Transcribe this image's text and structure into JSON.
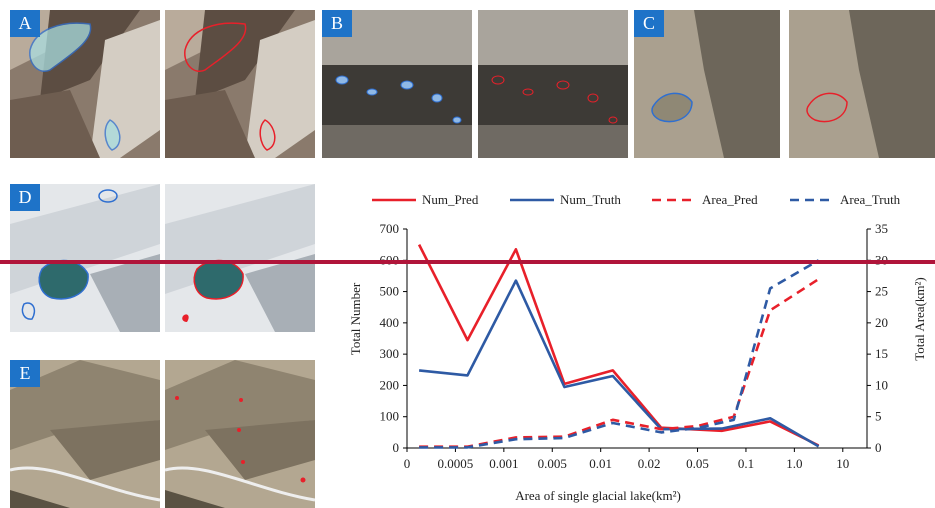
{
  "panels": {
    "A": {
      "label": "A"
    },
    "B": {
      "label": "B"
    },
    "C": {
      "label": "C"
    },
    "D": {
      "label": "D"
    },
    "E": {
      "label": "E"
    }
  },
  "colors": {
    "pred": "#e8202a",
    "truth": "#2e5aa4",
    "highlight_line": "#b0153a",
    "badge": "#1e73c8"
  },
  "chart_data": {
    "type": "line",
    "xlabel": "Area of single glacial lake(km²)",
    "ylabel_left": "Total Number",
    "ylabel_right": "Total Area(km²)",
    "x_ticks": [
      "0",
      "0.0005",
      "0.001",
      "0.005",
      "0.01",
      "0.02",
      "0.05",
      "0.1",
      "1.0",
      "10"
    ],
    "ylim_left": [
      0,
      700
    ],
    "yticks_left": [
      0,
      100,
      200,
      300,
      400,
      500,
      600,
      700
    ],
    "ylim_right": [
      0,
      35
    ],
    "yticks_right": [
      0,
      5,
      10,
      15,
      20,
      25,
      30,
      35
    ],
    "grid": false,
    "legend_position": "top",
    "x_positions": [
      0.5,
      1.5,
      2.5,
      3.5,
      4.5,
      5.5,
      6.5,
      7.5,
      8.5,
      9.5
    ],
    "series": [
      {
        "name": "Num_Pred",
        "axis": "left",
        "style": "solid",
        "color": "#e8202a",
        "x": [
          0.25,
          1.25,
          2.25,
          3.25,
          4.25,
          5.25,
          6.5,
          7.5,
          8.5
        ],
        "values": [
          650,
          345,
          635,
          205,
          248,
          65,
          55,
          85,
          8
        ]
      },
      {
        "name": "Num_Truth",
        "axis": "left",
        "style": "solid",
        "color": "#2e5aa4",
        "x": [
          0.25,
          1.25,
          2.25,
          3.25,
          4.25,
          5.25,
          6.5,
          7.5,
          8.5
        ],
        "values": [
          248,
          232,
          535,
          195,
          230,
          60,
          62,
          95,
          5
        ]
      },
      {
        "name": "Area_Pred",
        "axis": "right",
        "style": "dashed",
        "color": "#e8202a",
        "x": [
          0.25,
          1.25,
          2.25,
          3.25,
          4.25,
          5.25,
          6.0,
          6.75,
          7.5,
          8.5
        ],
        "values": [
          0.2,
          0.2,
          1.7,
          1.8,
          4.5,
          3.0,
          3.5,
          5.0,
          22.0,
          27.0
        ]
      },
      {
        "name": "Area_Truth",
        "axis": "right",
        "style": "dashed",
        "color": "#2e5aa4",
        "x": [
          0.25,
          1.25,
          2.25,
          3.25,
          4.25,
          5.25,
          6.0,
          6.75,
          7.5,
          8.5
        ],
        "values": [
          0.1,
          0.1,
          1.4,
          1.6,
          4.0,
          2.5,
          3.2,
          4.5,
          25.5,
          30.0
        ]
      }
    ]
  }
}
